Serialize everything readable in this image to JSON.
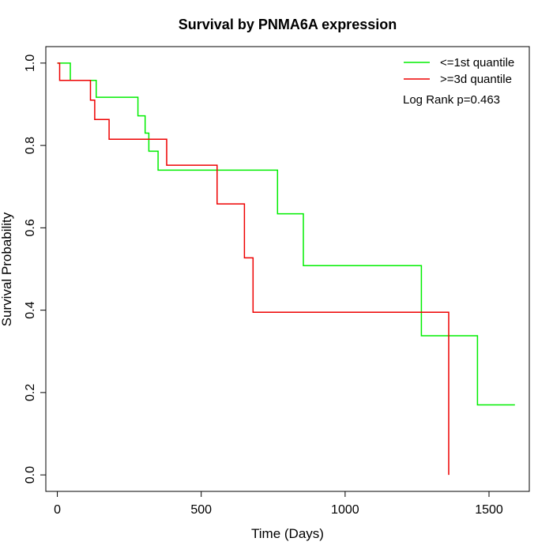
{
  "chart_data": {
    "type": "line",
    "subtype": "step",
    "title": "Survival by PNMA6A expression",
    "xlabel": "Time (Days)",
    "ylabel": "Survival Probability",
    "xlim": [
      -40,
      1640
    ],
    "ylim": [
      -0.04,
      1.04
    ],
    "xticks": [
      0,
      500,
      1000,
      1500
    ],
    "xtick_labels": [
      "0",
      "500",
      "1000",
      "1500"
    ],
    "yticks": [
      0.0,
      0.2,
      0.4,
      0.6,
      0.8,
      1.0
    ],
    "ytick_labels": [
      "0.0",
      "0.2",
      "0.4",
      "0.6",
      "0.8",
      "1.0"
    ],
    "grid": false,
    "legend_position": "top-right",
    "annotation": "Log Rank p=0.463",
    "series": [
      {
        "name": "<=1st quantile",
        "color": "#00ee00",
        "x": [
          0,
          45,
          45,
          135,
          135,
          280,
          280,
          305,
          305,
          318,
          318,
          350,
          350,
          765,
          765,
          855,
          855,
          1265,
          1265,
          1460,
          1460,
          1590
        ],
        "y": [
          1.0,
          1.0,
          0.958,
          0.958,
          0.917,
          0.917,
          0.872,
          0.872,
          0.83,
          0.83,
          0.786,
          0.786,
          0.74,
          0.74,
          0.634,
          0.634,
          0.508,
          0.508,
          0.338,
          0.338,
          0.17,
          0.17
        ]
      },
      {
        "name": ">=3d quantile",
        "color": "#ee0000",
        "x": [
          0,
          8,
          8,
          115,
          115,
          130,
          130,
          180,
          180,
          380,
          380,
          555,
          555,
          650,
          650,
          680,
          680,
          1360,
          1360
        ],
        "y": [
          1.0,
          1.0,
          0.958,
          0.958,
          0.91,
          0.91,
          0.863,
          0.863,
          0.815,
          0.815,
          0.752,
          0.752,
          0.658,
          0.658,
          0.527,
          0.527,
          0.395,
          0.395,
          0.0
        ]
      }
    ]
  }
}
